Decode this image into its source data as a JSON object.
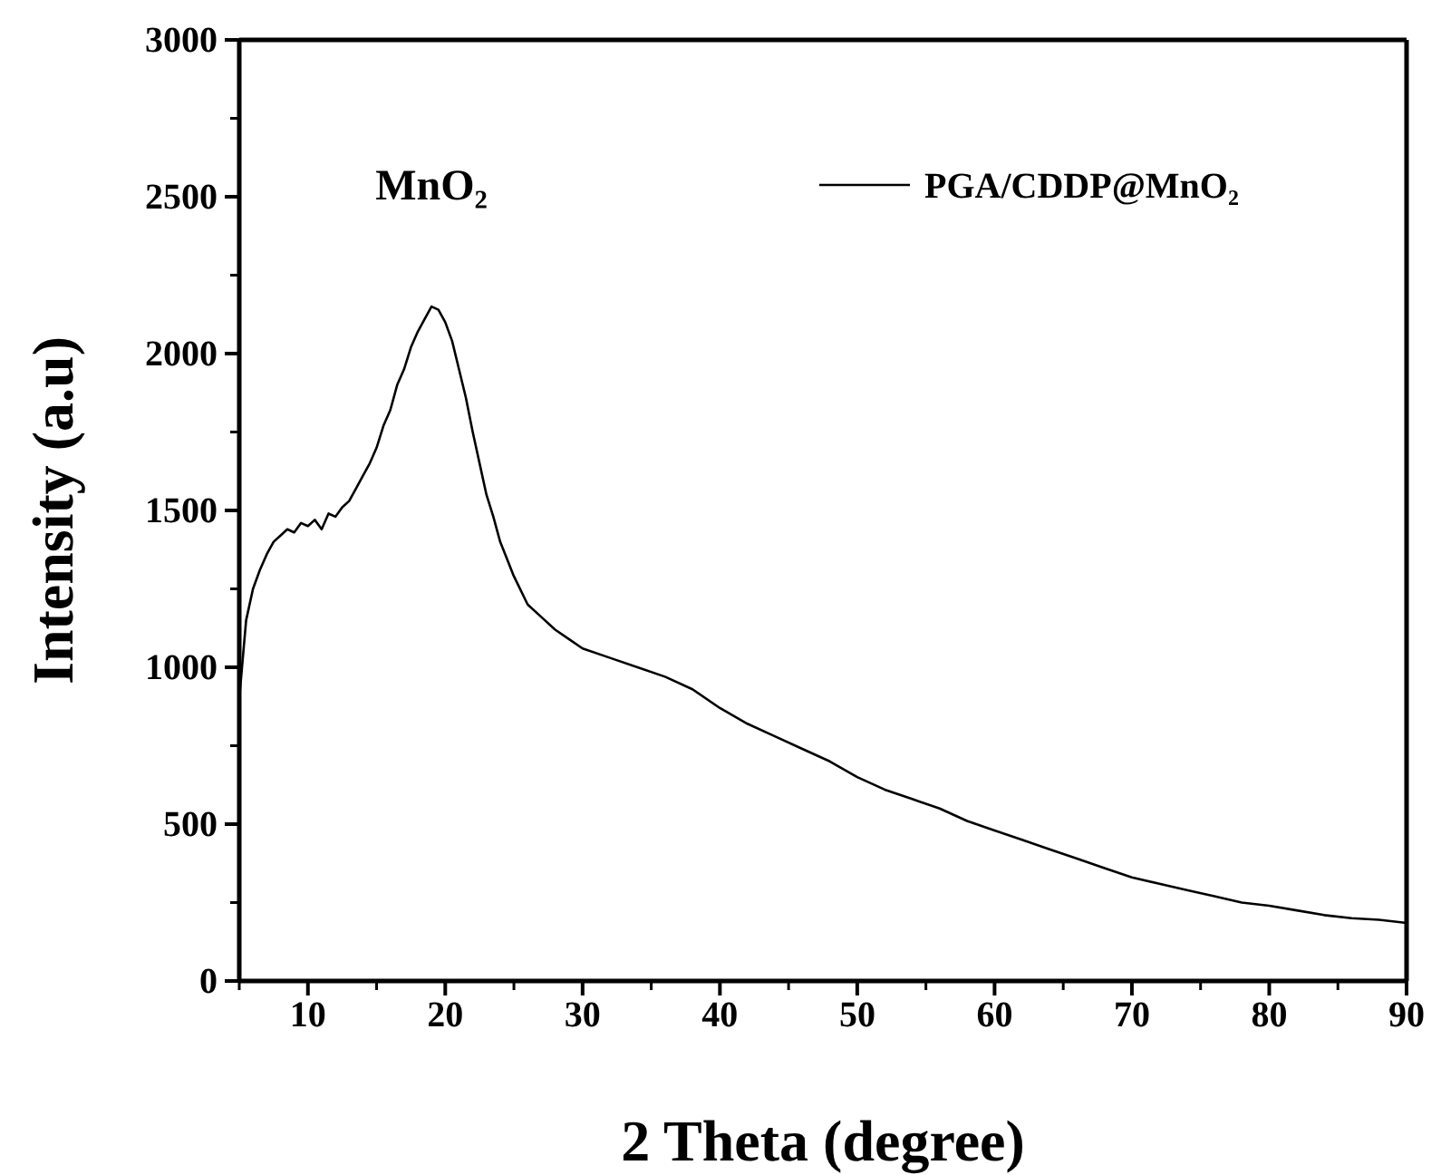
{
  "chart_data": {
    "type": "line",
    "xlabel": "2 Theta (degree)",
    "ylabel": "Intensity (a.u)",
    "xlim": [
      5,
      90
    ],
    "xticks": [
      10,
      20,
      30,
      40,
      50,
      60,
      70,
      80,
      90
    ],
    "ylim": [
      0,
      3000
    ],
    "yticks": [
      0,
      500,
      1000,
      1500,
      2000,
      2500,
      3000
    ],
    "legend": "top right",
    "grid": false,
    "marker": "none",
    "line_style": "solid",
    "annotations": [
      "MnO₂"
    ],
    "series": [
      {
        "name": "PGA/CDDP@MnO₂",
        "color": "#000000",
        "x": [
          5,
          5.5,
          6,
          6.5,
          7,
          7.5,
          8,
          8.5,
          9,
          9.5,
          10,
          10.5,
          11,
          11.5,
          12,
          12.5,
          13,
          13.5,
          14,
          14.5,
          15,
          15.5,
          16,
          16.5,
          17,
          17.5,
          18,
          18.5,
          19,
          19.5,
          20,
          20.5,
          21,
          21.5,
          22,
          22.5,
          23,
          23.5,
          24,
          25,
          26,
          27,
          28,
          29,
          30,
          32,
          34,
          36,
          38,
          40,
          42,
          44,
          46,
          48,
          50,
          52,
          54,
          56,
          58,
          60,
          62,
          64,
          66,
          68,
          70,
          72,
          74,
          76,
          78,
          80,
          82,
          84,
          86,
          88,
          90
        ],
        "values": [
          900,
          1150,
          1250,
          1310,
          1360,
          1400,
          1420,
          1440,
          1430,
          1460,
          1450,
          1470,
          1440,
          1490,
          1480,
          1510,
          1530,
          1570,
          1610,
          1650,
          1700,
          1770,
          1820,
          1900,
          1950,
          2020,
          2070,
          2110,
          2150,
          2140,
          2100,
          2040,
          1950,
          1860,
          1750,
          1650,
          1550,
          1480,
          1400,
          1290,
          1200,
          1160,
          1120,
          1090,
          1060,
          1030,
          1000,
          970,
          930,
          870,
          820,
          780,
          740,
          700,
          650,
          610,
          580,
          550,
          510,
          480,
          450,
          420,
          390,
          360,
          330,
          310,
          290,
          270,
          250,
          240,
          225,
          210,
          200,
          195,
          185
        ]
      }
    ]
  }
}
